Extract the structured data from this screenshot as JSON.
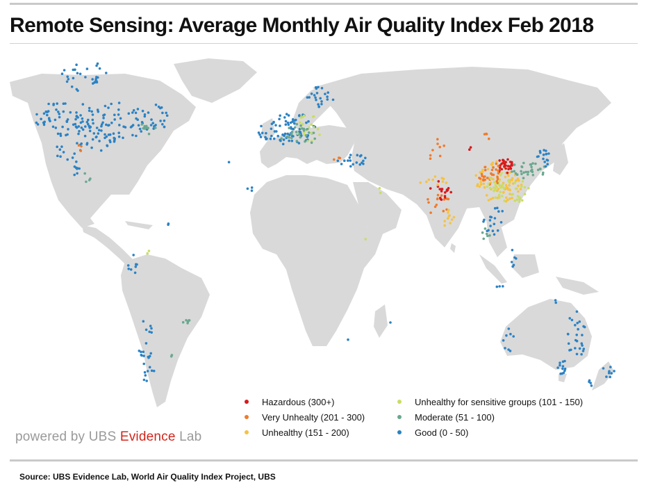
{
  "title": "Remote Sensing: Average Monthly Air Quality Index  Feb 2018",
  "legend": {
    "column1": [
      {
        "label": "Hazardous (300+)",
        "color": "#d7191c",
        "category": "hazardous"
      },
      {
        "label": "Very Unhealty (201 - 300)",
        "color": "#f07a2c",
        "category": "very-unhealthy"
      },
      {
        "label": "Unhealthy  (151 - 200)",
        "color": "#f5c242",
        "category": "unhealthy"
      }
    ],
    "column2": [
      {
        "label": "Unhealthy for sensitive groups (101 - 150)",
        "color": "#c9dd63",
        "category": "sensitive"
      },
      {
        "label": "Moderate (51 - 100)",
        "color": "#6aa88f",
        "category": "moderate"
      },
      {
        "label": "Good (0 - 50)",
        "color": "#2b82c4",
        "category": "good"
      }
    ]
  },
  "branding": {
    "prefix": "powered by UBS ",
    "highlight": "Evidence",
    "suffix": " Lab"
  },
  "source": "Source: UBS Evidence Lab, World  Air Quality Index Project, UBS",
  "colors": {
    "land": "#d9d9d9",
    "background": "#ffffff",
    "rule": "#c9c9c9"
  }
}
